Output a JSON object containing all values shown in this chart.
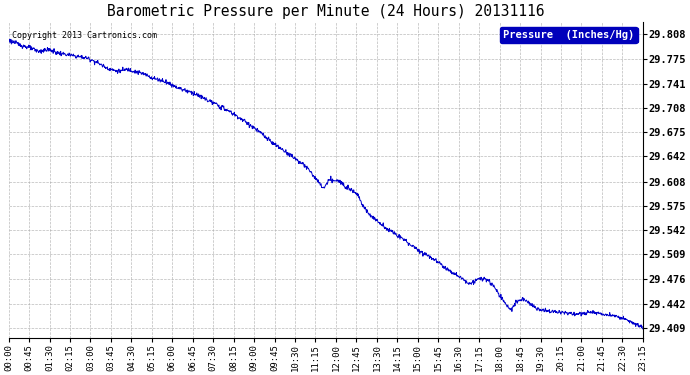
{
  "title": "Barometric Pressure per Minute (24 Hours) 20131116",
  "copyright": "Copyright 2013 Cartronics.com",
  "legend_label": "Pressure  (Inches/Hg)",
  "line_color": "#0000CC",
  "background_color": "#ffffff",
  "grid_color": "#aaaaaa",
  "yticks": [
    29.409,
    29.442,
    29.476,
    29.509,
    29.542,
    29.575,
    29.608,
    29.642,
    29.675,
    29.708,
    29.741,
    29.775,
    29.808
  ],
  "xtick_labels": [
    "00:00",
    "00:45",
    "01:30",
    "02:15",
    "03:00",
    "03:45",
    "04:30",
    "05:15",
    "06:00",
    "06:45",
    "07:30",
    "08:15",
    "09:00",
    "09:45",
    "10:30",
    "11:15",
    "12:00",
    "12:45",
    "13:30",
    "14:15",
    "15:00",
    "15:45",
    "16:30",
    "17:15",
    "18:00",
    "18:45",
    "19:30",
    "20:15",
    "21:00",
    "21:45",
    "22:30",
    "23:15"
  ],
  "ymin": 29.395,
  "ymax": 29.825,
  "num_points": 1440,
  "waypoints_x": [
    0,
    20,
    45,
    70,
    90,
    110,
    135,
    155,
    175,
    200,
    225,
    250,
    270,
    290,
    315,
    330,
    350,
    375,
    400,
    420,
    440,
    460,
    480,
    510,
    540,
    570,
    600,
    630,
    660,
    680,
    700,
    715,
    730,
    750,
    770,
    790,
    810,
    830,
    850,
    870,
    900,
    930,
    960,
    990,
    1020,
    1050,
    1065,
    1080,
    1095,
    1110,
    1125,
    1140,
    1155,
    1170,
    1185,
    1200,
    1230,
    1260,
    1290,
    1320,
    1350,
    1380,
    1410,
    1440
  ],
  "waypoints_y": [
    29.8,
    29.795,
    29.79,
    29.785,
    29.787,
    29.783,
    29.78,
    29.778,
    29.776,
    29.77,
    29.762,
    29.758,
    29.76,
    29.757,
    29.752,
    29.748,
    29.745,
    29.738,
    29.732,
    29.728,
    29.722,
    29.716,
    29.71,
    29.7,
    29.688,
    29.675,
    29.66,
    29.648,
    29.635,
    29.625,
    29.61,
    29.6,
    29.61,
    29.608,
    29.6,
    29.592,
    29.57,
    29.558,
    29.548,
    29.54,
    29.528,
    29.515,
    29.505,
    29.492,
    29.48,
    29.47,
    29.475,
    29.476,
    29.47,
    29.458,
    29.445,
    29.435,
    29.445,
    29.448,
    29.442,
    29.435,
    29.432,
    29.43,
    29.428,
    29.43,
    29.428,
    29.425,
    29.418,
    29.409
  ]
}
